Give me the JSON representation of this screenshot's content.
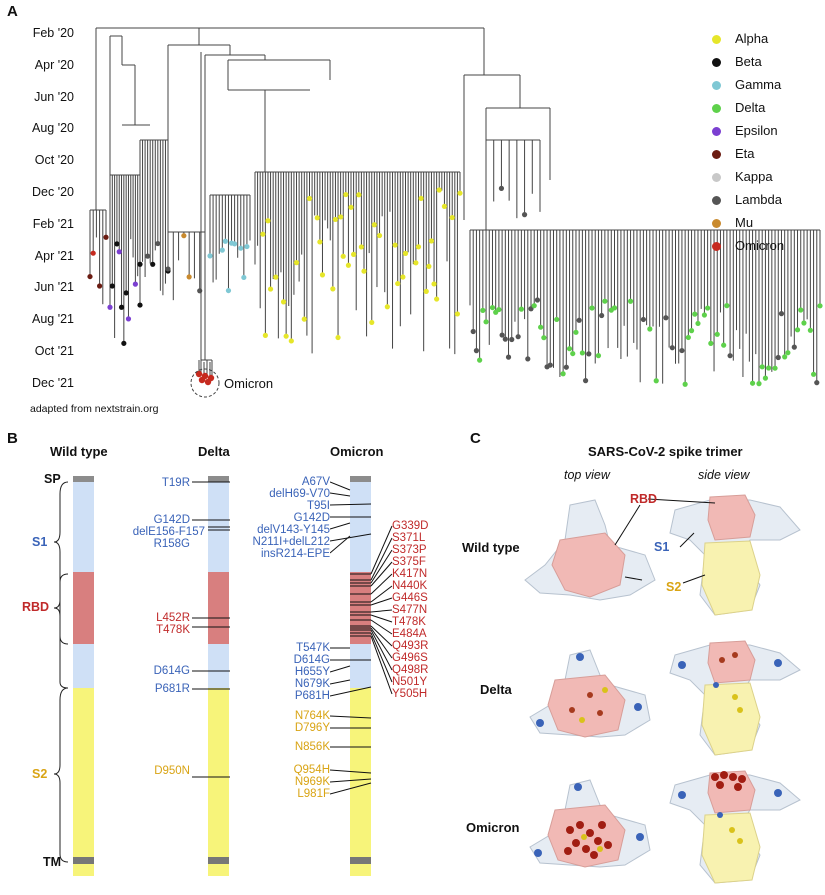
{
  "panels": {
    "a": "A",
    "b": "B",
    "c": "C"
  },
  "panel_a": {
    "dates": [
      "Feb '20",
      "Apr '20",
      "Jun '20",
      "Aug '20",
      "Oct '20",
      "Dec '20",
      "Feb '21",
      "Apr '21",
      "Jun '21",
      "Aug '21",
      "Oct '21",
      "Dec '21"
    ],
    "legend": [
      {
        "name": "Alpha",
        "color": "#e6e62a"
      },
      {
        "name": "Beta",
        "color": "#111111"
      },
      {
        "name": "Gamma",
        "color": "#7fc8d4"
      },
      {
        "name": "Delta",
        "color": "#5ed14b"
      },
      {
        "name": "Epsilon",
        "color": "#7b3fd1"
      },
      {
        "name": "Eta",
        "color": "#6b1c12"
      },
      {
        "name": "Kappa",
        "color": "#c8c8c8"
      },
      {
        "name": "Lambda",
        "color": "#555555"
      },
      {
        "name": "Mu",
        "color": "#c98a2e"
      },
      {
        "name": "Omicron",
        "color": "#c62a1f"
      }
    ],
    "omicron_label": "Omicron",
    "credit": "adapted from nextstrain.org"
  },
  "panel_b": {
    "columns": {
      "wt": "Wild type",
      "delta": "Delta",
      "omicron": "Omicron"
    },
    "domains": {
      "sp": "SP",
      "s1": "S1",
      "rbd": "RBD",
      "s2": "S2",
      "tm": "TM"
    },
    "delta_muts": {
      "blue": [
        "T19R",
        "G142D",
        "delE156-F157",
        "R158G"
      ],
      "red": [
        "L452R",
        "T478K"
      ],
      "blue2": [
        "D614G",
        "P681R"
      ],
      "yellow": [
        "D950N"
      ]
    },
    "omicron_muts": {
      "blue": [
        "A67V",
        "delH69-V70",
        "T95I",
        "G142D",
        "delV143-Y145",
        "N211I+delL212",
        "insR214-EPE"
      ],
      "red": [
        "G339D",
        "S371L",
        "S373P",
        "S375F",
        "K417N",
        "N440K",
        "G446S",
        "S477N",
        "T478K",
        "E484A",
        "Q493R",
        "G496S",
        "Q498R",
        "N501Y",
        "Y505H"
      ],
      "blue2": [
        "T547K",
        "D614G",
        "H655Y",
        "N679K",
        "P681H"
      ],
      "yellow": [
        "N764K",
        "D796Y",
        "N856K",
        "Q954H",
        "N969K",
        "L981F"
      ]
    }
  },
  "panel_c": {
    "title": "SARS-CoV-2 spike trimer",
    "top_view": "top view",
    "side_view": "side view",
    "rows": [
      "Wild type",
      "Delta",
      "Omicron"
    ],
    "labels": {
      "rbd": "RBD",
      "s1": "S1",
      "s2": "S2"
    }
  },
  "colors": {
    "blue": "#3a63b8",
    "red": "#c02a2a",
    "yellow": "#d9a414",
    "s1": "#cfe0f6",
    "rbd": "#d87f7f",
    "s2": "#f7f47a",
    "gray": "#8c8c8c"
  }
}
